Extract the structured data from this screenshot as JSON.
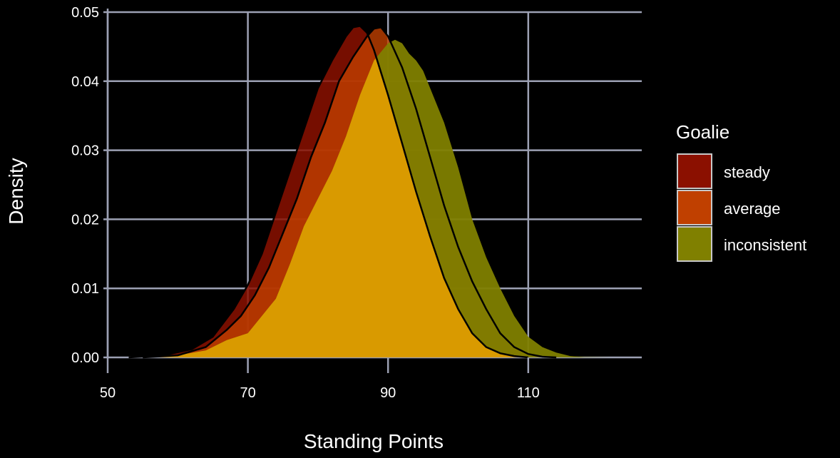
{
  "chart_data": {
    "type": "area",
    "subtype": "density",
    "xlabel": "Standing Points",
    "ylabel": "Density",
    "xlim": [
      50,
      126
    ],
    "ylim": [
      0,
      0.05
    ],
    "x_ticks": [
      50,
      70,
      90,
      110
    ],
    "y_ticks": [
      0.0,
      0.01,
      0.02,
      0.03,
      0.04,
      0.05
    ],
    "x_tick_labels": [
      "50",
      "70",
      "90",
      "110"
    ],
    "y_tick_labels": [
      "0.00",
      "0.01",
      "0.02",
      "0.03",
      "0.04",
      "0.05"
    ],
    "grid": true,
    "legend": {
      "title": "Goalie",
      "placement": "right"
    },
    "series": [
      {
        "name": "steady",
        "color": "#8B1000",
        "opacity": 0.85,
        "points": [
          [
            53,
            0
          ],
          [
            58,
            0.0003
          ],
          [
            62,
            0.0012
          ],
          [
            65,
            0.003
          ],
          [
            68,
            0.007
          ],
          [
            70,
            0.0105
          ],
          [
            72,
            0.015
          ],
          [
            74,
            0.021
          ],
          [
            76,
            0.027
          ],
          [
            78,
            0.033
          ],
          [
            80,
            0.039
          ],
          [
            82,
            0.043
          ],
          [
            84,
            0.0465
          ],
          [
            85,
            0.0478
          ],
          [
            86,
            0.048
          ],
          [
            87,
            0.047
          ],
          [
            88,
            0.0445
          ],
          [
            90,
            0.038
          ],
          [
            92,
            0.031
          ],
          [
            94,
            0.024
          ],
          [
            96,
            0.0175
          ],
          [
            98,
            0.0115
          ],
          [
            100,
            0.007
          ],
          [
            102,
            0.0035
          ],
          [
            104,
            0.0015
          ],
          [
            106,
            0.0006
          ],
          [
            108,
            0.0002
          ],
          [
            110,
            0
          ]
        ]
      },
      {
        "name": "average",
        "color": "#C04000",
        "opacity": 0.8,
        "points": [
          [
            55,
            0
          ],
          [
            60,
            0.0003
          ],
          [
            64,
            0.0015
          ],
          [
            67,
            0.004
          ],
          [
            69,
            0.006
          ],
          [
            71,
            0.009
          ],
          [
            73,
            0.013
          ],
          [
            75,
            0.018
          ],
          [
            77,
            0.023
          ],
          [
            79,
            0.029
          ],
          [
            81,
            0.034
          ],
          [
            83,
            0.04
          ],
          [
            85,
            0.0435
          ],
          [
            87,
            0.0465
          ],
          [
            88,
            0.0476
          ],
          [
            89,
            0.0478
          ],
          [
            90,
            0.0465
          ],
          [
            92,
            0.042
          ],
          [
            94,
            0.036
          ],
          [
            96,
            0.029
          ],
          [
            98,
            0.022
          ],
          [
            100,
            0.016
          ],
          [
            102,
            0.011
          ],
          [
            104,
            0.007
          ],
          [
            106,
            0.0035
          ],
          [
            108,
            0.0015
          ],
          [
            110,
            0.0005
          ],
          [
            112,
            0.0001
          ],
          [
            114,
            0
          ]
        ]
      },
      {
        "name": "inconsistent",
        "color": "#808000",
        "opacity": 0.95,
        "points": [
          [
            56,
            0
          ],
          [
            60,
            0.0003
          ],
          [
            64,
            0.001
          ],
          [
            67,
            0.0025
          ],
          [
            70,
            0.0035
          ],
          [
            72,
            0.006
          ],
          [
            74,
            0.0085
          ],
          [
            76,
            0.0135
          ],
          [
            78,
            0.019
          ],
          [
            80,
            0.023
          ],
          [
            82,
            0.027
          ],
          [
            84,
            0.032
          ],
          [
            86,
            0.038
          ],
          [
            88,
            0.043
          ],
          [
            90,
            0.0455
          ],
          [
            91,
            0.046
          ],
          [
            92,
            0.0455
          ],
          [
            93,
            0.044
          ],
          [
            94,
            0.043
          ],
          [
            95,
            0.0415
          ],
          [
            96,
            0.039
          ],
          [
            98,
            0.034
          ],
          [
            100,
            0.0275
          ],
          [
            102,
            0.02
          ],
          [
            104,
            0.0145
          ],
          [
            106,
            0.01
          ],
          [
            108,
            0.006
          ],
          [
            110,
            0.003
          ],
          [
            112,
            0.0015
          ],
          [
            114,
            0.0007
          ],
          [
            116,
            0.0002
          ],
          [
            118,
            5e-05
          ],
          [
            122,
            0
          ]
        ]
      }
    ],
    "overlap_color": "#D99A00"
  }
}
